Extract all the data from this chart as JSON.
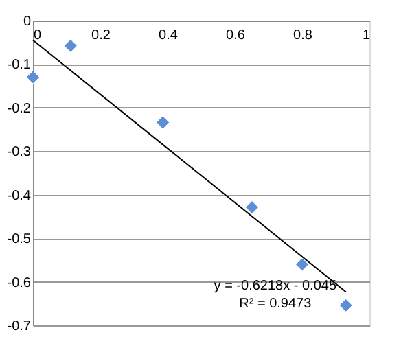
{
  "chart_data": {
    "type": "scatter",
    "xlim": [
      0,
      1
    ],
    "xticks": [
      0,
      0.2,
      0.4,
      0.6,
      0.8,
      1
    ],
    "ylim": [
      -0.7,
      0
    ],
    "yticks": [
      0,
      -0.1,
      -0.2,
      -0.3,
      -0.4,
      -0.5,
      -0.6,
      -0.7
    ],
    "grid": "y",
    "marker": "diamond",
    "series": [
      {
        "color": "#5b8fd6",
        "x": [
          0,
          0.112,
          0.386,
          0.651,
          0.8,
          0.93
        ],
        "values": [
          -0.13,
          -0.058,
          -0.234,
          -0.429,
          -0.56,
          -0.654
        ]
      },
      {
        "type": "line",
        "color": "#000000",
        "line_style": "solid",
        "marker": "none",
        "x": [
          0,
          0.93
        ],
        "values": [
          -0.045,
          -0.623
        ]
      }
    ],
    "annotations": [
      "y = -0.6218x - 0.045",
      "R² = 0.9473"
    ]
  }
}
